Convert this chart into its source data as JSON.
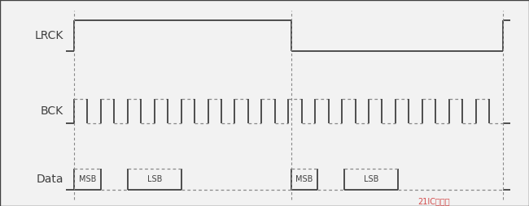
{
  "bg_color": "#f2f2f2",
  "line_color": "#404040",
  "dashed_color": "#888888",
  "lrck_label": "LRCK",
  "bck_label": "BCK",
  "data_label": "Data",
  "watermark_text": "21IC电子网",
  "border_lw": 1.0,
  "signal_lw": 1.3,
  "dashed_lw": 0.9,
  "label_fontsize": 10,
  "data_fontsize": 7,
  "figwidth": 6.5,
  "figheight": 2.54,
  "dpi": 100
}
